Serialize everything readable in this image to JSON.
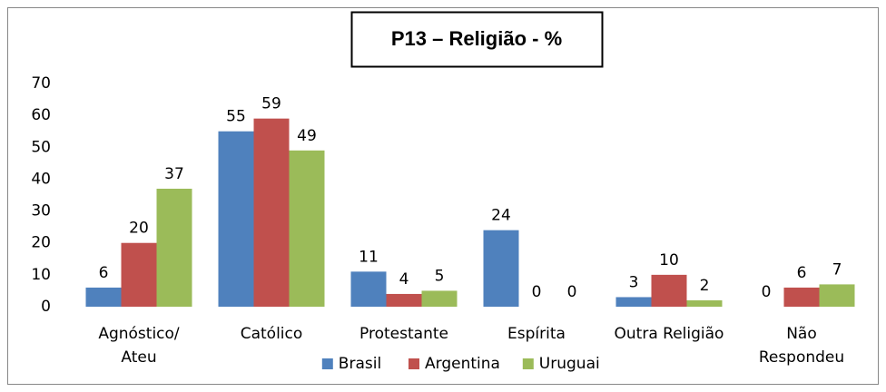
{
  "chart_data": {
    "type": "bar",
    "title": "P13 – Religião - %",
    "categories": [
      "Agnóstico/\nAteu",
      "Católico",
      "Protestante",
      "Espírita",
      "Outra Religião",
      "Não\nRespondeu"
    ],
    "series": [
      {
        "name": "Brasil",
        "color": "#4f81bd",
        "values": [
          6,
          55,
          11,
          24,
          3,
          0
        ]
      },
      {
        "name": "Argentina",
        "color": "#c0504d",
        "values": [
          20,
          59,
          4,
          0,
          10,
          6
        ]
      },
      {
        "name": "Uruguai",
        "color": "#9bbb59",
        "values": [
          37,
          49,
          5,
          0,
          2,
          7
        ]
      }
    ],
    "ylim": [
      0,
      70
    ],
    "yticks": [
      0,
      10,
      20,
      30,
      40,
      50,
      60,
      70
    ],
    "grid": false,
    "legend": "bottom"
  }
}
